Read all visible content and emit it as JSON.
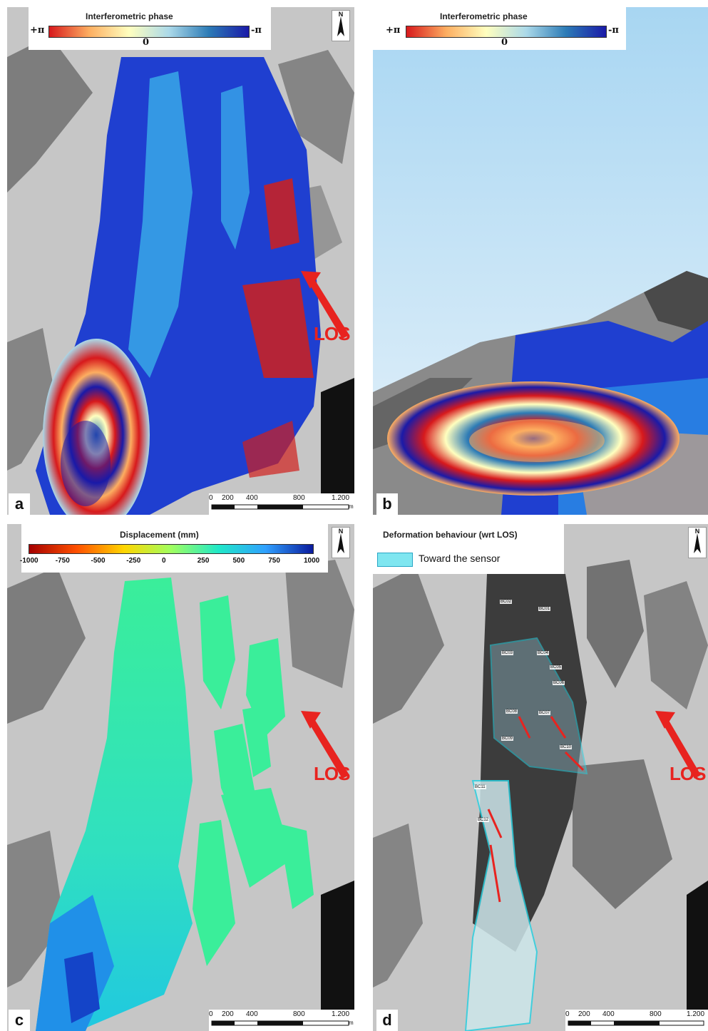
{
  "panels": {
    "a": {
      "letter": "a",
      "legend": {
        "title": "Interferometric phase",
        "left": "+π",
        "center": "0",
        "right": "-π"
      },
      "los": "LOS",
      "scale": [
        "0",
        "200",
        "400",
        "800",
        "1.200"
      ],
      "scale_unit": "m"
    },
    "b": {
      "letter": "b",
      "legend": {
        "title": "Interferometric phase",
        "left": "+π",
        "center": "0",
        "right": "-π"
      }
    },
    "c": {
      "letter": "c",
      "legend": {
        "title": "Displacement (mm)",
        "ticks": [
          "-1000",
          "-750",
          "-500",
          "-250",
          "0",
          "250",
          "500",
          "750",
          "1000"
        ]
      },
      "los": "LOS",
      "scale": [
        "0",
        "200",
        "400",
        "800",
        "1.200"
      ],
      "scale_unit": "m"
    },
    "d": {
      "letter": "d",
      "legend": {
        "title": "Deformation behaviour (wrt LOS)",
        "item": "Toward the sensor",
        "item_color": "#7fe6f0"
      },
      "los": "LOS",
      "scale": [
        "0",
        "200",
        "400",
        "800",
        "1.200"
      ],
      "scale_unit": "m",
      "points": [
        "BC02",
        "BC01",
        "BC03",
        "BC04",
        "BC05",
        "BC06",
        "BC08",
        "BC07",
        "BC09",
        "BC10",
        "BC11",
        "BC12"
      ]
    }
  },
  "north_label": "N",
  "colors": {
    "los_arrow": "#e8231f",
    "phase_gradient": [
      "#d7191c",
      "#fdae61",
      "#ffffbf",
      "#abd9e9",
      "#2c7bb6",
      "#1a1aa8"
    ],
    "displacement_gradient": [
      "#a50000",
      "#ff5000",
      "#ffd500",
      "#a0ff60",
      "#20e8c8",
      "#30a0ff",
      "#0a1a9c"
    ]
  }
}
